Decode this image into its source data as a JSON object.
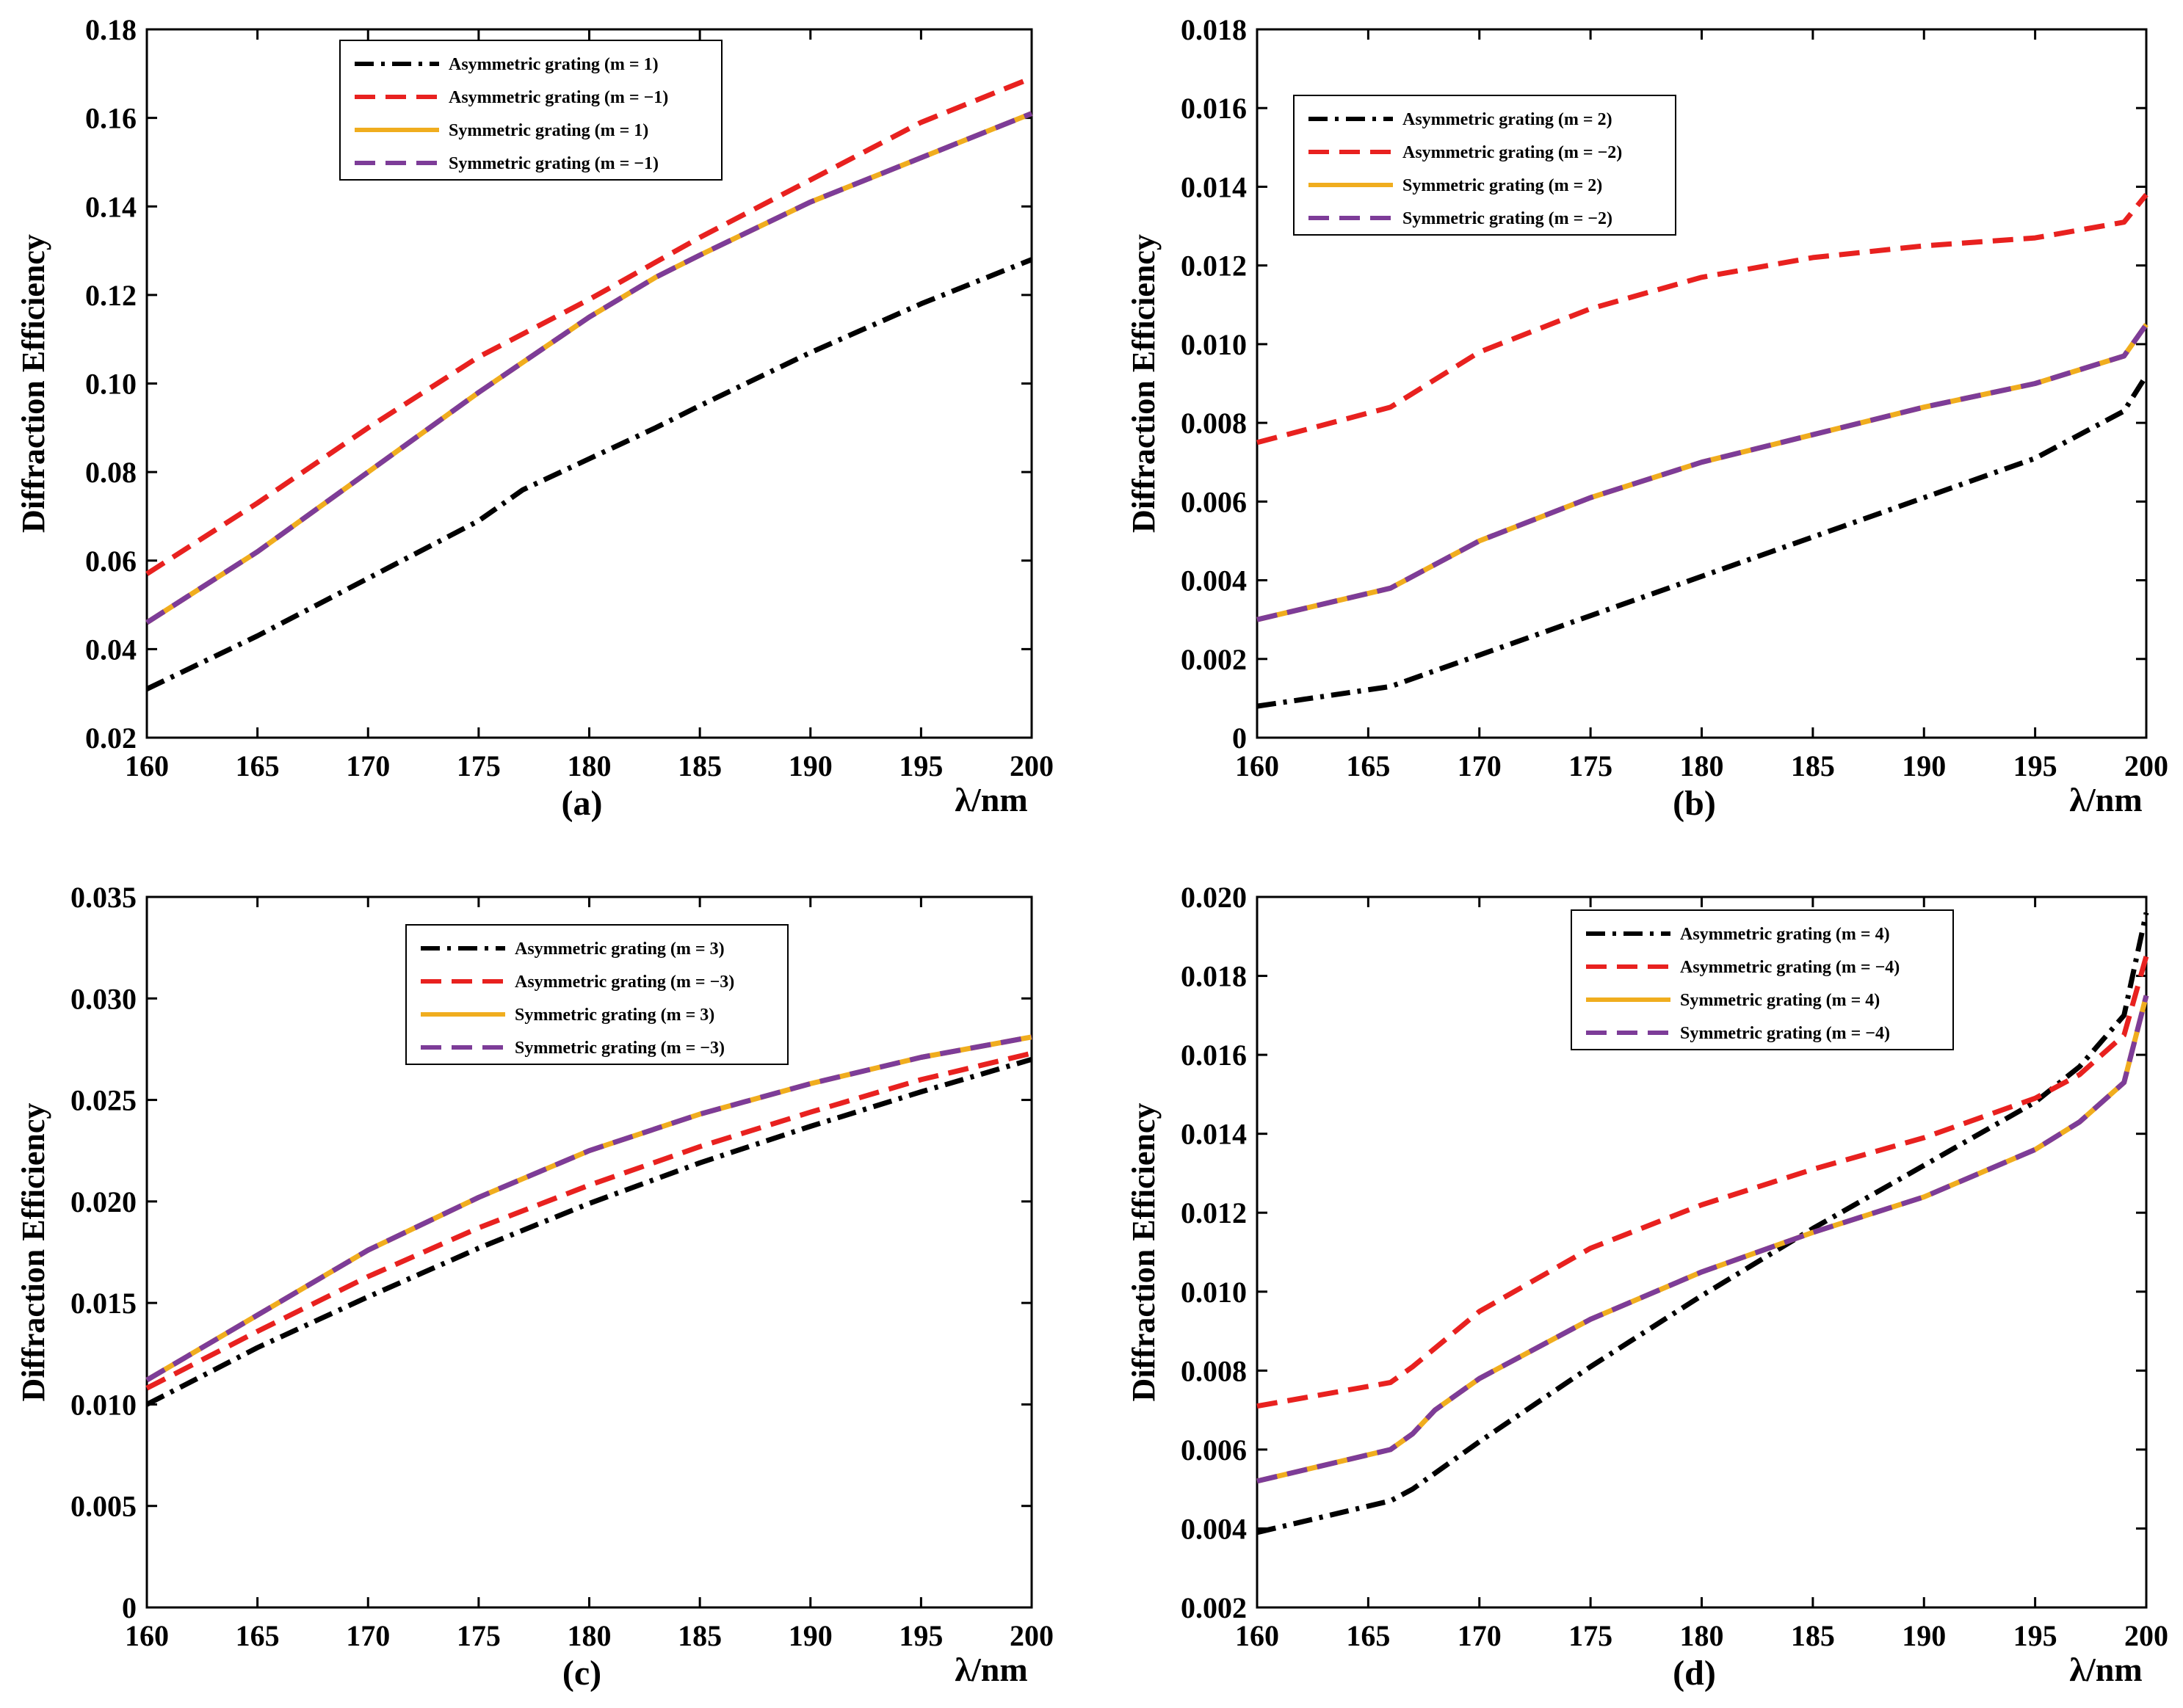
{
  "charts": [
    {
      "panel_label": "(a)",
      "type": "line",
      "ylabel": "Diffraction Efficiency",
      "xlabel": "λ/nm",
      "xlim": [
        160,
        200
      ],
      "ylim": [
        0.02,
        0.18
      ],
      "xticks": [
        "160",
        "165",
        "170",
        "175",
        "180",
        "185",
        "190",
        "195",
        "200"
      ],
      "yticks": [
        "0.02",
        "0.04",
        "0.06",
        "0.08",
        "0.10",
        "0.12",
        "0.14",
        "0.16",
        "0.18"
      ],
      "legend_position": "top-center",
      "series": [
        {
          "name": "Asymmetric grating (m = 1)",
          "color": "#000000",
          "style": "dashdot",
          "x": [
            160,
            165,
            170,
            175,
            177,
            180,
            183,
            185,
            190,
            195,
            200
          ],
          "y": [
            0.031,
            0.043,
            0.056,
            0.069,
            0.076,
            0.083,
            0.09,
            0.095,
            0.107,
            0.118,
            0.128
          ]
        },
        {
          "name": "Asymmetric grating (m = −1)",
          "color": "#e8211f",
          "style": "dashed",
          "x": [
            160,
            165,
            170,
            175,
            180,
            185,
            190,
            195,
            200
          ],
          "y": [
            0.057,
            0.073,
            0.09,
            0.106,
            0.119,
            0.133,
            0.146,
            0.159,
            0.169
          ]
        },
        {
          "name": "Symmetric grating (m = 1)",
          "color": "#f0ad1e",
          "style": "solid",
          "x": [
            160,
            165,
            170,
            175,
            180,
            183,
            185,
            190,
            195,
            200
          ],
          "y": [
            0.046,
            0.062,
            0.08,
            0.098,
            0.115,
            0.124,
            0.129,
            0.141,
            0.151,
            0.161
          ]
        },
        {
          "name": "Symmetric grating (m = −1)",
          "color": "#7d3c98",
          "style": "dashed",
          "x": [
            160,
            165,
            170,
            175,
            180,
            183,
            185,
            190,
            195,
            200
          ],
          "y": [
            0.046,
            0.062,
            0.08,
            0.098,
            0.115,
            0.124,
            0.129,
            0.141,
            0.151,
            0.161
          ]
        }
      ]
    },
    {
      "panel_label": "(b)",
      "type": "line",
      "ylabel": "Diffraction Efficiency",
      "xlabel": "λ/nm",
      "xlim": [
        160,
        200
      ],
      "ylim": [
        0,
        0.018
      ],
      "xticks": [
        "160",
        "165",
        "170",
        "175",
        "180",
        "185",
        "190",
        "195",
        "200"
      ],
      "yticks": [
        "0",
        "0.002",
        "0.004",
        "0.006",
        "0.008",
        "0.010",
        "0.012",
        "0.014",
        "0.016",
        "0.018"
      ],
      "legend_position": "top-left",
      "series": [
        {
          "name": "Asymmetric grating (m = 2)",
          "color": "#000000",
          "style": "dashdot",
          "x": [
            160,
            166,
            170,
            175,
            180,
            185,
            190,
            195,
            199,
            200
          ],
          "y": [
            0.0008,
            0.0013,
            0.0021,
            0.0031,
            0.0041,
            0.0051,
            0.0061,
            0.0071,
            0.0083,
            0.0092
          ]
        },
        {
          "name": "Asymmetric grating (m = −2)",
          "color": "#e8211f",
          "style": "dashed",
          "x": [
            160,
            166,
            170,
            175,
            180,
            185,
            190,
            195,
            199,
            200
          ],
          "y": [
            0.0075,
            0.0084,
            0.0098,
            0.0109,
            0.0117,
            0.0122,
            0.0125,
            0.0127,
            0.0131,
            0.0138
          ]
        },
        {
          "name": "Symmetric grating (m = 2)",
          "color": "#f0ad1e",
          "style": "solid",
          "x": [
            160,
            166,
            170,
            175,
            180,
            185,
            190,
            195,
            199,
            200
          ],
          "y": [
            0.003,
            0.0038,
            0.005,
            0.0061,
            0.007,
            0.0077,
            0.0084,
            0.009,
            0.0097,
            0.0105
          ]
        },
        {
          "name": "Symmetric grating (m = −2)",
          "color": "#7d3c98",
          "style": "dashed",
          "x": [
            160,
            166,
            170,
            175,
            180,
            185,
            190,
            195,
            199,
            200
          ],
          "y": [
            0.003,
            0.0038,
            0.005,
            0.0061,
            0.007,
            0.0077,
            0.0084,
            0.009,
            0.0097,
            0.0105
          ]
        }
      ]
    },
    {
      "panel_label": "(c)",
      "type": "line",
      "ylabel": "Diffraction Efficiency",
      "xlabel": "λ/nm",
      "xlim": [
        160,
        200
      ],
      "ylim": [
        0,
        0.035
      ],
      "xticks": [
        "160",
        "165",
        "170",
        "175",
        "180",
        "185",
        "190",
        "195",
        "200"
      ],
      "yticks": [
        "0",
        "0.005",
        "0.010",
        "0.015",
        "0.020",
        "0.025",
        "0.030",
        "0.035"
      ],
      "legend_position": "top-center",
      "series": [
        {
          "name": "Asymmetric grating (m = 3)",
          "color": "#000000",
          "style": "dashdot",
          "x": [
            160,
            165,
            170,
            175,
            180,
            185,
            190,
            195,
            200
          ],
          "y": [
            0.01,
            0.0128,
            0.0153,
            0.0177,
            0.0199,
            0.0219,
            0.0237,
            0.0254,
            0.027
          ]
        },
        {
          "name": "Asymmetric grating (m = −3)",
          "color": "#e8211f",
          "style": "dashed",
          "x": [
            160,
            165,
            170,
            175,
            180,
            185,
            190,
            195,
            200
          ],
          "y": [
            0.0108,
            0.0136,
            0.0163,
            0.0187,
            0.0208,
            0.0227,
            0.0244,
            0.026,
            0.0273
          ]
        },
        {
          "name": "Symmetric grating (m = 3)",
          "color": "#f0ad1e",
          "style": "solid",
          "x": [
            160,
            165,
            170,
            175,
            180,
            185,
            190,
            195,
            200
          ],
          "y": [
            0.0112,
            0.0144,
            0.0176,
            0.0202,
            0.0225,
            0.0243,
            0.0258,
            0.0271,
            0.0281
          ]
        },
        {
          "name": "Symmetric grating (m = −3)",
          "color": "#7d3c98",
          "style": "dashed",
          "x": [
            160,
            165,
            170,
            175,
            180,
            185,
            190,
            195,
            200
          ],
          "y": [
            0.0112,
            0.0144,
            0.0176,
            0.0202,
            0.0225,
            0.0243,
            0.0258,
            0.0271,
            0.0281
          ]
        }
      ]
    },
    {
      "panel_label": "(d)",
      "type": "line",
      "ylabel": "Diffraction Efficiency",
      "xlabel": "λ/nm",
      "xlim": [
        160,
        200
      ],
      "ylim": [
        0.002,
        0.02
      ],
      "xticks": [
        "160",
        "165",
        "170",
        "175",
        "180",
        "185",
        "190",
        "195",
        "200"
      ],
      "yticks": [
        "0.002",
        "0.004",
        "0.006",
        "0.008",
        "0.010",
        "0.012",
        "0.014",
        "0.016",
        "0.018",
        "0.020"
      ],
      "legend_position": "top-center",
      "series": [
        {
          "name": "Asymmetric grating (m = 4)",
          "color": "#000000",
          "style": "dashdot",
          "x": [
            160,
            166,
            167,
            170,
            175,
            180,
            185,
            190,
            195,
            197,
            199,
            200
          ],
          "y": [
            0.0039,
            0.0047,
            0.005,
            0.0062,
            0.0081,
            0.0099,
            0.0116,
            0.0132,
            0.0148,
            0.0157,
            0.017,
            0.0196
          ]
        },
        {
          "name": "Asymmetric grating (m = −4)",
          "color": "#e8211f",
          "style": "dashed",
          "x": [
            160,
            166,
            167,
            170,
            175,
            180,
            185,
            190,
            195,
            197,
            199,
            200
          ],
          "y": [
            0.0071,
            0.0077,
            0.0081,
            0.0095,
            0.0111,
            0.0122,
            0.0131,
            0.0139,
            0.0149,
            0.0155,
            0.0165,
            0.0185
          ]
        },
        {
          "name": "Symmetric grating (m = 4)",
          "color": "#f0ad1e",
          "style": "solid",
          "x": [
            160,
            166,
            167,
            168,
            170,
            175,
            180,
            185,
            190,
            195,
            197,
            199,
            200
          ],
          "y": [
            0.0052,
            0.006,
            0.0064,
            0.007,
            0.0078,
            0.0093,
            0.0105,
            0.0115,
            0.0124,
            0.0136,
            0.0143,
            0.0153,
            0.0175
          ]
        },
        {
          "name": "Symmetric grating (m = −4)",
          "color": "#7d3c98",
          "style": "dashed",
          "x": [
            160,
            166,
            167,
            168,
            170,
            175,
            180,
            185,
            190,
            195,
            197,
            199,
            200
          ],
          "y": [
            0.0052,
            0.006,
            0.0064,
            0.007,
            0.0078,
            0.0093,
            0.0105,
            0.0115,
            0.0124,
            0.0136,
            0.0143,
            0.0153,
            0.0175
          ]
        }
      ]
    }
  ]
}
